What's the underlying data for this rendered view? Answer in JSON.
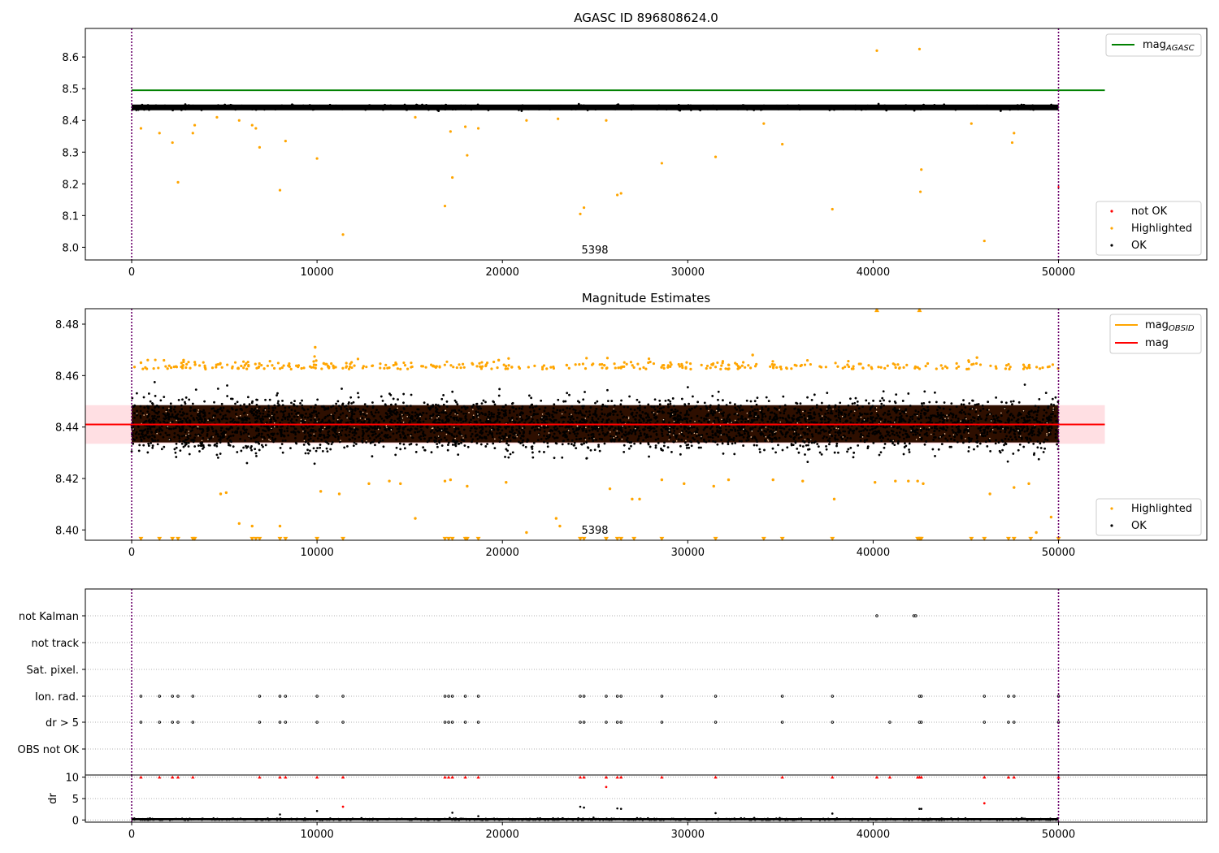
{
  "chart_data": [
    {
      "type": "scatter",
      "title": "AGASC ID 896808624.0",
      "annotation": "5398",
      "xlim": [
        -2500,
        58000
      ],
      "ylim": [
        7.96,
        8.69
      ],
      "xticks": [
        0,
        10000,
        20000,
        30000,
        40000,
        50000
      ],
      "xtick_labels": [
        "0",
        "10000",
        "20000",
        "30000",
        "40000",
        "50000"
      ],
      "yticks": [
        8.0,
        8.1,
        8.2,
        8.3,
        8.4,
        8.5,
        8.6
      ],
      "ytick_labels": [
        "8.0",
        "8.1",
        "8.2",
        "8.3",
        "8.4",
        "8.5",
        "8.6"
      ],
      "obs_boundaries": [
        0,
        50000
      ],
      "ok_band": {
        "x": [
          0,
          50000
        ],
        "center": 8.441,
        "half_width": 0.012
      },
      "mag_agasc": {
        "value": 8.495,
        "x": [
          0,
          52500
        ]
      },
      "highlighted": {
        "x": [
          500,
          1500,
          2200,
          2500,
          3300,
          3400,
          4600,
          5800,
          6500,
          6700,
          6900,
          8000,
          8300,
          10000,
          11400,
          15300,
          16900,
          17200,
          17300,
          18000,
          18100,
          18700,
          21300,
          23000,
          24200,
          24400,
          25600,
          26200,
          26400,
          28600,
          31500,
          34100,
          35100,
          37800,
          40200,
          42500,
          42550,
          42600,
          45300,
          46000,
          47500,
          47600
        ],
        "y": [
          8.375,
          8.36,
          8.33,
          8.205,
          8.36,
          8.385,
          8.41,
          8.4,
          8.385,
          8.375,
          8.315,
          8.18,
          8.335,
          8.28,
          8.04,
          8.41,
          8.13,
          8.365,
          8.22,
          8.38,
          8.29,
          8.375,
          8.4,
          8.405,
          8.105,
          8.125,
          8.4,
          8.165,
          8.17,
          8.265,
          8.285,
          8.39,
          8.325,
          8.12,
          8.62,
          8.625,
          8.175,
          8.245,
          8.39,
          8.02,
          8.33,
          8.36
        ]
      },
      "not_ok": {
        "x": [
          50000
        ],
        "y": [
          8.19
        ]
      },
      "legend_lines": [
        {
          "label": "mag",
          "subscript": "AGASC",
          "color": "#008000"
        }
      ],
      "legend_points": [
        {
          "label": "not OK",
          "color": "#ff0000"
        },
        {
          "label": "Highlighted",
          "color": "#ffa500"
        },
        {
          "label": "OK",
          "color": "#000000"
        }
      ]
    },
    {
      "type": "scatter",
      "title": "Magnitude Estimates",
      "annotation": "5398",
      "xlim": [
        -2500,
        58000
      ],
      "ylim": [
        8.396,
        8.486
      ],
      "xticks": [
        0,
        10000,
        20000,
        30000,
        40000,
        50000
      ],
      "xtick_labels": [
        "0",
        "10000",
        "20000",
        "30000",
        "40000",
        "50000"
      ],
      "yticks": [
        8.4,
        8.42,
        8.44,
        8.46,
        8.48
      ],
      "ytick_labels": [
        "8.40",
        "8.42",
        "8.44",
        "8.46",
        "8.48"
      ],
      "obs_boundaries": [
        0,
        50000
      ],
      "mag": {
        "value": 8.441,
        "x": [
          -2500,
          52500
        ],
        "band_half_width": 0.0075
      },
      "ok_band": {
        "x": [
          0,
          50000
        ],
        "center": 8.441,
        "half_width": 0.012
      },
      "highlighted": {
        "x": [
          4800,
          5100,
          5800,
          6500,
          8000,
          10200,
          11200,
          12800,
          13900,
          14500,
          15300,
          16900,
          17200,
          18100,
          20200,
          21300,
          22900,
          23100,
          25800,
          27000,
          27400,
          28600,
          29800,
          31400,
          32200,
          34600,
          36200,
          37900,
          40100,
          41200,
          41900,
          42400,
          42700,
          46300,
          47600,
          48400,
          48800,
          49600,
          500,
          2800,
          9900,
          19800,
          25500,
          33500,
          45600,
          40200,
          42500
        ],
        "y": [
          8.414,
          8.4145,
          8.4025,
          8.4015,
          8.4015,
          8.415,
          8.414,
          8.418,
          8.419,
          8.418,
          8.4045,
          8.419,
          8.4195,
          8.417,
          8.4185,
          8.399,
          8.4045,
          8.4015,
          8.416,
          8.412,
          8.412,
          8.4195,
          8.418,
          8.417,
          8.4195,
          8.4195,
          8.419,
          8.412,
          8.4185,
          8.419,
          8.419,
          8.419,
          8.418,
          8.414,
          8.4165,
          8.418,
          8.399,
          8.405,
          8.465,
          8.466,
          8.471,
          8.466,
          8.464,
          8.468,
          8.467,
          8.4855,
          8.4855
        ]
      },
      "low_markers_x": [
        500,
        1500,
        2200,
        2500,
        3300,
        3400,
        6500,
        6700,
        6900,
        8000,
        8300,
        10000,
        11400,
        16900,
        17100,
        17300,
        18000,
        18100,
        18700,
        24200,
        24400,
        25600,
        26200,
        26400,
        27100,
        28600,
        31500,
        34100,
        35100,
        37800,
        42400,
        42500,
        42550,
        42600,
        45300,
        46000,
        47300,
        47600,
        48500,
        50000
      ],
      "low_marker_y": 8.3965,
      "legend_lines": [
        {
          "label": "mag",
          "subscript": "OBSID",
          "color": "#ffa500"
        },
        {
          "label": "mag",
          "subscript": "",
          "color": "#ff0000"
        }
      ],
      "legend_points": [
        {
          "label": "Highlighted",
          "color": "#ffa500"
        },
        {
          "label": "OK",
          "color": "#000000"
        }
      ]
    },
    {
      "type": "scatter",
      "categories": [
        "not Kalman",
        "not track",
        "Sat. pixel.",
        "Ion. rad.",
        "dr > 5",
        "OBS not OK"
      ],
      "xlim": [
        -2500,
        58000
      ],
      "obs_boundaries": [
        0,
        50000
      ],
      "flags": {
        "not Kalman": [
          40200,
          42200,
          42300
        ],
        "not track": [],
        "Sat. pixel.": [],
        "Ion. rad.": [
          500,
          1500,
          2200,
          2500,
          3300,
          6900,
          8000,
          8300,
          10000,
          11400,
          16900,
          17100,
          17300,
          18000,
          18700,
          24200,
          24400,
          25600,
          26200,
          26400,
          28600,
          31500,
          35100,
          37800,
          42500,
          42600,
          46000,
          47300,
          47600,
          50000
        ],
        "dr > 5": [
          500,
          1500,
          2200,
          2500,
          3300,
          6900,
          8000,
          8300,
          10000,
          11400,
          16900,
          17100,
          17300,
          18000,
          18700,
          24200,
          24400,
          25600,
          26200,
          26400,
          28600,
          31500,
          35100,
          37800,
          40900,
          42500,
          42600,
          46000,
          47300,
          47600,
          50000
        ],
        "OBS not OK": []
      }
    },
    {
      "type": "scatter",
      "ylabel": "dr",
      "xlim": [
        -2500,
        58000
      ],
      "ylim": [
        -0.5,
        10.5
      ],
      "xticks": [
        0,
        10000,
        20000,
        30000,
        40000,
        50000
      ],
      "xtick_labels": [
        "0",
        "10000",
        "20000",
        "30000",
        "40000",
        "50000"
      ],
      "yticks": [
        0,
        5,
        10
      ],
      "ytick_labels": [
        "0",
        "5",
        "10"
      ],
      "obs_boundaries": [
        0,
        50000
      ],
      "clipped_x": [
        500,
        1500,
        2200,
        2500,
        3300,
        6900,
        8000,
        8300,
        10000,
        11400,
        16900,
        17100,
        17300,
        18000,
        18700,
        24200,
        24400,
        25600,
        26200,
        26400,
        28600,
        31500,
        35100,
        37800,
        40200,
        40900,
        42400,
        42500,
        42600,
        46000,
        47300,
        47600,
        50000
      ],
      "clipped_y": 10,
      "red_points": {
        "x": [
          25600,
          11400,
          46000
        ],
        "y": [
          7.7,
          3.1,
          3.9
        ]
      },
      "black_points": {
        "x": [
          10000,
          17300,
          24200,
          24400,
          26200,
          26400,
          31500,
          37800,
          42500,
          42600,
          8000,
          18700
        ],
        "y": [
          2.1,
          1.7,
          3.1,
          2.9,
          2.7,
          2.6,
          1.6,
          1.5,
          2.6,
          2.6,
          1.3,
          0.9
        ]
      }
    }
  ]
}
